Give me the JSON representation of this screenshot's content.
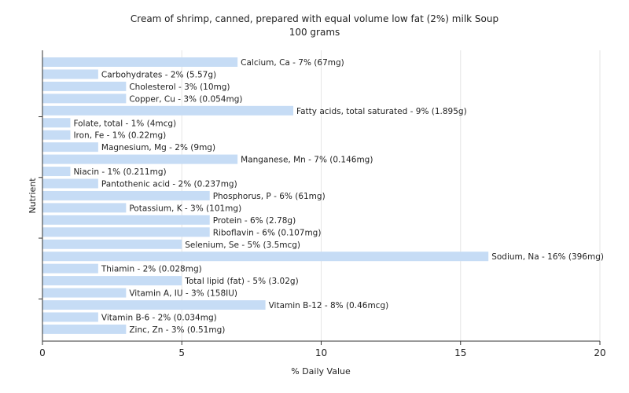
{
  "chart_data": {
    "type": "bar",
    "orientation": "horizontal",
    "title": "Cream of shrimp, canned, prepared with equal volume low fat (2%) milk Soup",
    "subtitle": "100 grams",
    "xlabel": "% Daily Value",
    "ylabel": "Nutrient",
    "xlim": [
      0,
      20
    ],
    "xticks": [
      0,
      5,
      10,
      15,
      20
    ],
    "grid": "vertical",
    "legend": "none",
    "bar_color": "#c6dcf5",
    "categories": [
      "Calcium, Ca",
      "Carbohydrates",
      "Cholesterol",
      "Copper, Cu",
      "Fatty acids, total saturated",
      "Folate, total",
      "Iron, Fe",
      "Magnesium, Mg",
      "Manganese, Mn",
      "Niacin",
      "Pantothenic acid",
      "Phosphorus, P",
      "Potassium, K",
      "Protein",
      "Riboflavin",
      "Selenium, Se",
      "Sodium, Na",
      "Thiamin",
      "Total lipid (fat)",
      "Vitamin A, IU",
      "Vitamin B-12",
      "Vitamin B-6",
      "Zinc, Zn"
    ],
    "values": [
      7,
      2,
      3,
      3,
      9,
      1,
      1,
      2,
      7,
      1,
      2,
      6,
      3,
      6,
      6,
      5,
      16,
      2,
      5,
      3,
      8,
      2,
      3
    ],
    "labels": [
      "Calcium, Ca - 7% (67mg)",
      "Carbohydrates - 2% (5.57g)",
      "Cholesterol - 3% (10mg)",
      "Copper, Cu - 3% (0.054mg)",
      "Fatty acids, total saturated - 9% (1.895g)",
      "Folate, total - 1% (4mcg)",
      "Iron, Fe - 1% (0.22mg)",
      "Magnesium, Mg - 2% (9mg)",
      "Manganese, Mn - 7% (0.146mg)",
      "Niacin - 1% (0.211mg)",
      "Pantothenic acid - 2% (0.237mg)",
      "Phosphorus, P - 6% (61mg)",
      "Potassium, K - 3% (101mg)",
      "Protein - 6% (2.78g)",
      "Riboflavin - 6% (0.107mg)",
      "Selenium, Se - 5% (3.5mcg)",
      "Sodium, Na - 16% (396mg)",
      "Thiamin - 2% (0.028mg)",
      "Total lipid (fat) - 5% (3.02g)",
      "Vitamin A, IU - 3% (158IU)",
      "Vitamin B-12 - 8% (0.46mcg)",
      "Vitamin B-6 - 2% (0.034mg)",
      "Zinc, Zn - 3% (0.51mg)"
    ]
  }
}
